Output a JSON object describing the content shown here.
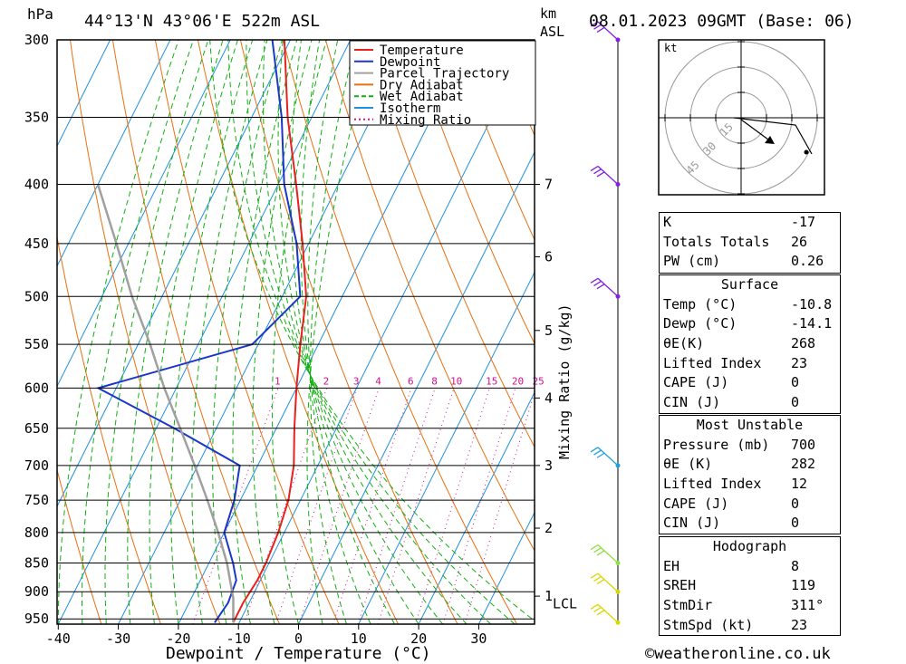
{
  "header": {
    "pressure_unit": "hPa",
    "location": "44°13'N  43°06'E  522m  ASL",
    "height_unit_line1": "km",
    "height_unit_line2": "ASL",
    "datetime": "08.01.2023  09GMT  (Base: 06)"
  },
  "chart_data": {
    "type": "line",
    "chart_kind": "skew-T log-p diagram",
    "xlabel": "Dewpoint / Temperature (°C)",
    "ylabel": "hPa",
    "y_scale": "log",
    "ylim": [
      960,
      300
    ],
    "x_ticks": [
      -40,
      -30,
      -20,
      -10,
      0,
      10,
      20,
      30
    ],
    "pressure_levels": [
      300,
      350,
      400,
      450,
      500,
      550,
      600,
      650,
      700,
      750,
      800,
      850,
      900,
      950
    ],
    "km_ticks": [
      {
        "label": "1",
        "p": 908
      },
      {
        "label": "2",
        "p": 793
      },
      {
        "label": "3",
        "p": 700
      },
      {
        "label": "4",
        "p": 612
      },
      {
        "label": "5",
        "p": 535
      },
      {
        "label": "6",
        "p": 462
      },
      {
        "label": "7",
        "p": 400
      }
    ],
    "lcl": {
      "label": "LCL",
      "p": 912
    },
    "mixing_ratio_axis_label": "Mixing Ratio (g/kg)",
    "mixing_ratio_labels": [
      "1",
      "2",
      "3",
      "4",
      "6",
      "8",
      "10",
      "15",
      "20",
      "25"
    ],
    "mixing_ratio_values": [
      1,
      2,
      3,
      4,
      6,
      8,
      10,
      15,
      20,
      25
    ],
    "series": [
      {
        "name": "Temperature",
        "color": "#e82020",
        "points": [
          [
            957,
            -11
          ],
          [
            920,
            -11
          ],
          [
            880,
            -10.5
          ],
          [
            850,
            -10.5
          ],
          [
            800,
            -11
          ],
          [
            750,
            -12
          ],
          [
            700,
            -14
          ],
          [
            650,
            -17
          ],
          [
            600,
            -20
          ],
          [
            550,
            -23
          ],
          [
            500,
            -26
          ],
          [
            450,
            -31
          ],
          [
            400,
            -37
          ],
          [
            350,
            -44
          ],
          [
            300,
            -51
          ]
        ]
      },
      {
        "name": "Dewpoint",
        "color": "#1a37c8",
        "points": [
          [
            957,
            -14.1
          ],
          [
            920,
            -13.5
          ],
          [
            880,
            -14
          ],
          [
            850,
            -16
          ],
          [
            800,
            -20
          ],
          [
            750,
            -21
          ],
          [
            700,
            -23
          ],
          [
            650,
            -37
          ],
          [
            600,
            -53
          ],
          [
            550,
            -31
          ],
          [
            500,
            -27
          ],
          [
            450,
            -32
          ],
          [
            400,
            -39
          ],
          [
            350,
            -45
          ],
          [
            300,
            -53
          ]
        ]
      },
      {
        "name": "Parcel Trajectory",
        "color": "#a0a0a0",
        "points": [
          [
            957,
            -11
          ],
          [
            912,
            -13
          ],
          [
            850,
            -17
          ],
          [
            800,
            -21
          ],
          [
            750,
            -25.5
          ],
          [
            700,
            -30.5
          ],
          [
            650,
            -36
          ],
          [
            600,
            -42
          ],
          [
            550,
            -48
          ],
          [
            500,
            -55
          ],
          [
            450,
            -62
          ],
          [
            400,
            -70
          ]
        ]
      }
    ],
    "legend": {
      "position": "top-center",
      "items": [
        {
          "label": "Temperature",
          "color": "#e82020",
          "style": "solid"
        },
        {
          "label": "Dewpoint",
          "color": "#1a37c8",
          "style": "solid"
        },
        {
          "label": "Parcel Trajectory",
          "color": "#a0a0a0",
          "style": "solid"
        },
        {
          "label": "Dry Adiabat",
          "color": "#e87010",
          "style": "solid"
        },
        {
          "label": "Wet Adiabat",
          "color": "#10b010",
          "style": "dashed"
        },
        {
          "label": "Isotherm",
          "color": "#2090e0",
          "style": "solid"
        },
        {
          "label": "Mixing Ratio",
          "color": "#d01090",
          "style": "dotted"
        }
      ]
    },
    "wind_barbs": [
      {
        "p": 300,
        "color": "#8020e0"
      },
      {
        "p": 400,
        "color": "#8020e0"
      },
      {
        "p": 500,
        "color": "#8020e0"
      },
      {
        "p": 700,
        "color": "#20a0e0"
      },
      {
        "p": 850,
        "color": "#90e040"
      },
      {
        "p": 900,
        "color": "#d8d800"
      },
      {
        "p": 957,
        "color": "#d8d800"
      }
    ]
  },
  "hodograph": {
    "unit": "kt",
    "ring_labels": [
      "15",
      "30",
      "45"
    ]
  },
  "indices": {
    "k_label": "K",
    "k_value": "-17",
    "tt_label": "Totals Totals",
    "tt_value": "26",
    "pw_label": "PW (cm)",
    "pw_value": "0.26"
  },
  "surface": {
    "title": "Surface",
    "rows": [
      {
        "label": "Temp (°C)",
        "value": "-10.8"
      },
      {
        "label": "Dewp (°C)",
        "value": "-14.1"
      },
      {
        "label": "θE(K)",
        "value": "268"
      },
      {
        "label": "Lifted Index",
        "value": "23"
      },
      {
        "label": "CAPE (J)",
        "value": "0"
      },
      {
        "label": "CIN (J)",
        "value": "0"
      }
    ]
  },
  "most_unstable": {
    "title": "Most Unstable",
    "rows": [
      {
        "label": "Pressure (mb)",
        "value": "700"
      },
      {
        "label": "θE (K)",
        "value": "282"
      },
      {
        "label": "Lifted Index",
        "value": "12"
      },
      {
        "label": "CAPE (J)",
        "value": "0"
      },
      {
        "label": "CIN (J)",
        "value": "0"
      }
    ]
  },
  "hodograph_table": {
    "title": "Hodograph",
    "rows": [
      {
        "label": "EH",
        "value": "8"
      },
      {
        "label": "SREH",
        "value": "119"
      },
      {
        "label": "StmDir",
        "value": "311°"
      },
      {
        "label": "StmSpd (kt)",
        "value": "23"
      }
    ]
  },
  "footer": {
    "credit": "©weatheronline.co.uk"
  }
}
